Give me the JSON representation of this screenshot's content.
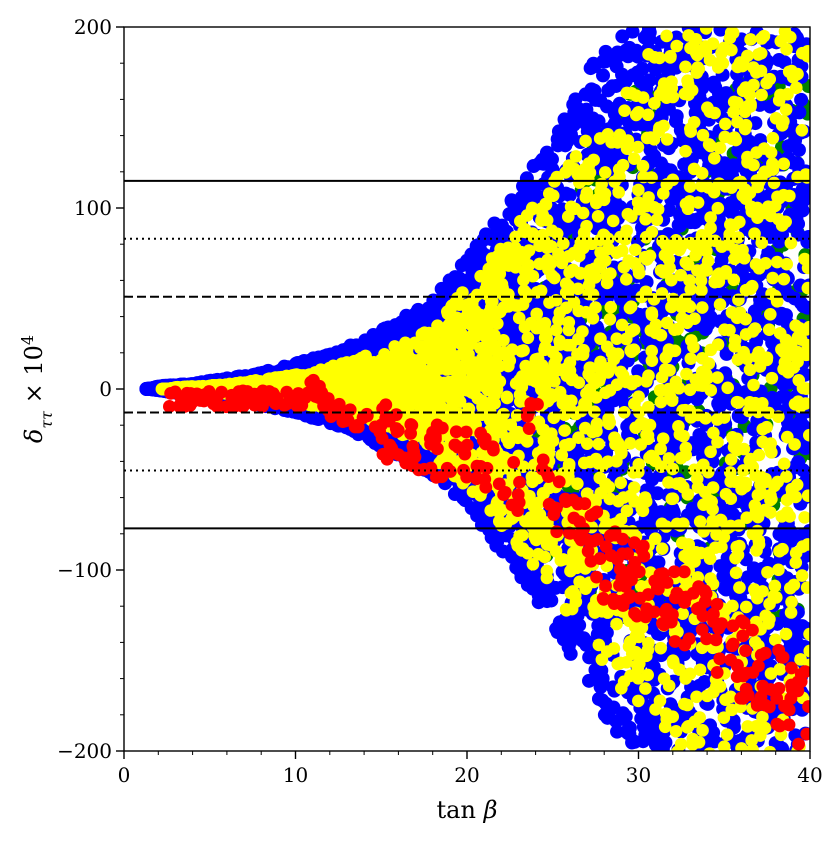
{
  "chart_data": {
    "type": "scatter",
    "title": "",
    "xlabel": "tan β",
    "ylabel": "δ_ττ × 10^4",
    "xlim": [
      0,
      40
    ],
    "ylim": [
      -200,
      200
    ],
    "x_ticks": [
      0,
      10,
      20,
      30,
      40
    ],
    "y_ticks": [
      -200,
      -100,
      0,
      100,
      200
    ],
    "x_tick_labels": [
      "0",
      "10",
      "20",
      "30",
      "40"
    ],
    "y_tick_labels": [
      "−200",
      "−100",
      "0",
      "100",
      "200"
    ],
    "grid": false,
    "legend": "none",
    "series": [
      {
        "color": "#008000",
        "points": [
          [
            1.5,
            0
          ],
          [
            2,
            0.5
          ],
          [
            3,
            -1
          ],
          [
            5,
            2
          ],
          [
            7,
            -4
          ],
          [
            10,
            5
          ],
          [
            12,
            -10
          ],
          [
            15,
            14
          ],
          [
            18,
            -30
          ],
          [
            20,
            50
          ],
          [
            22,
            -60
          ],
          [
            24,
            90
          ],
          [
            26,
            -110
          ],
          [
            28,
            -130
          ],
          [
            30,
            170
          ]
        ]
      },
      {
        "color": "#0000ff",
        "points": [
          [
            1.5,
            0
          ],
          [
            2,
            1.5
          ],
          [
            3,
            -2
          ],
          [
            4,
            3
          ],
          [
            5,
            -4
          ],
          [
            6,
            6
          ],
          [
            7,
            -7
          ],
          [
            8,
            9
          ],
          [
            9,
            -11
          ],
          [
            10,
            14
          ],
          [
            11,
            -16
          ],
          [
            12,
            20
          ],
          [
            13,
            -22
          ],
          [
            14,
            28
          ],
          [
            15,
            -32
          ],
          [
            16,
            38
          ],
          [
            17,
            -42
          ],
          [
            18,
            50
          ],
          [
            19,
            -55
          ],
          [
            20,
            72
          ],
          [
            21,
            -78
          ],
          [
            22,
            98
          ],
          [
            23,
            -104
          ],
          [
            24,
            125
          ],
          [
            25,
            -130
          ],
          [
            26,
            160
          ],
          [
            27,
            -166
          ],
          [
            28,
            190
          ],
          [
            29,
            -196
          ],
          [
            30,
            200
          ],
          [
            32,
            -200
          ],
          [
            34,
            200
          ],
          [
            36,
            -200
          ],
          [
            39,
            200
          ]
        ]
      },
      {
        "color": "#ffff00",
        "points": [
          [
            2.5,
            0
          ],
          [
            3,
            1
          ],
          [
            4,
            -1
          ],
          [
            5,
            2
          ],
          [
            6,
            -3
          ],
          [
            7,
            4
          ],
          [
            8,
            -5
          ],
          [
            9,
            7
          ],
          [
            10,
            -8
          ],
          [
            11,
            10
          ],
          [
            12,
            -12
          ],
          [
            13,
            16
          ],
          [
            14,
            -18
          ],
          [
            15,
            22
          ],
          [
            16,
            -26
          ],
          [
            17,
            30
          ],
          [
            18,
            -35
          ],
          [
            19,
            42
          ],
          [
            20,
            -48
          ],
          [
            21,
            60
          ],
          [
            22,
            -70
          ],
          [
            23,
            82
          ],
          [
            24,
            -90
          ],
          [
            25,
            102
          ],
          [
            26,
            -112
          ],
          [
            27,
            124
          ],
          [
            28,
            -136
          ],
          [
            29,
            148
          ],
          [
            30,
            -160
          ],
          [
            31,
            172
          ],
          [
            32,
            -178
          ],
          [
            33,
            184
          ],
          [
            34,
            -188
          ],
          [
            35,
            192
          ],
          [
            36,
            -193
          ],
          [
            37,
            195
          ],
          [
            38,
            -196
          ],
          [
            39,
            197
          ],
          [
            39.5,
            -197
          ]
        ]
      },
      {
        "color": "#ff0000",
        "points": [
          [
            2.8,
            -1
          ],
          [
            3.5,
            -1.5
          ],
          [
            4,
            -2
          ],
          [
            5,
            -3
          ],
          [
            6,
            -3
          ],
          [
            7,
            -4
          ],
          [
            8,
            -6
          ],
          [
            9,
            -7
          ],
          [
            10,
            -8
          ],
          [
            11,
            2
          ],
          [
            12,
            -10
          ],
          [
            13,
            -15
          ],
          [
            14,
            -18
          ],
          [
            15,
            -22
          ],
          [
            16,
            -28
          ],
          [
            17,
            -32
          ],
          [
            18,
            -34
          ],
          [
            19,
            -35
          ],
          [
            20,
            -36
          ],
          [
            21,
            -40
          ],
          [
            22,
            -45
          ],
          [
            23,
            -58
          ],
          [
            24,
            3
          ],
          [
            25,
            -70
          ],
          [
            26,
            -78
          ],
          [
            27,
            -82
          ],
          [
            28,
            -96
          ],
          [
            29,
            -100
          ],
          [
            30,
            -108
          ],
          [
            31,
            -110
          ],
          [
            32,
            -118
          ],
          [
            33,
            -125
          ],
          [
            34,
            -132
          ],
          [
            35,
            -140
          ],
          [
            36,
            -150
          ],
          [
            37,
            -158
          ],
          [
            38,
            -165
          ],
          [
            39,
            -172
          ],
          [
            40,
            -180
          ]
        ]
      }
    ],
    "reference_lines": [
      {
        "y": 115,
        "style": "solid"
      },
      {
        "y": 83,
        "style": "dotted"
      },
      {
        "y": 51,
        "style": "dashed"
      },
      {
        "y": -13,
        "style": "dashed"
      },
      {
        "y": -45,
        "style": "dotted"
      },
      {
        "y": -77,
        "style": "solid"
      }
    ]
  }
}
